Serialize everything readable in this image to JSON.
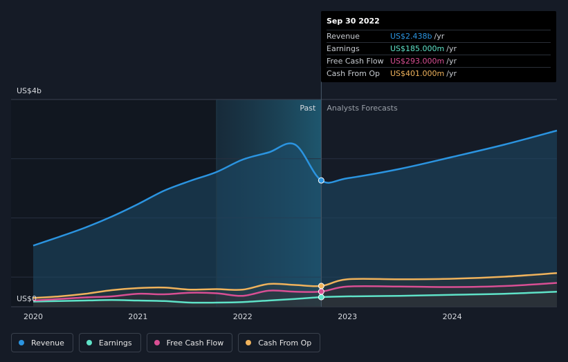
{
  "chart_data": {
    "type": "line",
    "y_axis": {
      "top_label": "US$4b",
      "bottom_label": "US$0",
      "ylim": [
        0,
        4.0
      ]
    },
    "x_axis": {
      "ticks": [
        "2020",
        "2021",
        "2022",
        "2023",
        "2024"
      ],
      "xlim": [
        2020.0,
        2025.0
      ]
    },
    "sections": {
      "past_label": "Past",
      "forecast_label": "Analysts Forecasts",
      "divider_x": 2022.75,
      "shade_start_x": 2021.75
    },
    "series": [
      {
        "name": "Revenue",
        "color": "#2b94e0",
        "x": [
          2020.0,
          2020.25,
          2020.5,
          2020.75,
          2021.0,
          2021.25,
          2021.5,
          2021.75,
          2022.0,
          2022.25,
          2022.5,
          2022.75,
          2023.0,
          2023.5,
          2024.0,
          2024.5,
          2025.0
        ],
        "values": [
          1.18,
          1.35,
          1.53,
          1.74,
          1.98,
          2.24,
          2.43,
          2.6,
          2.84,
          2.98,
          3.13,
          2.438,
          2.48,
          2.66,
          2.89,
          3.13,
          3.4
        ]
      },
      {
        "name": "Earnings",
        "color": "#5fe3c8",
        "x": [
          2020.0,
          2020.25,
          2020.5,
          2020.75,
          2021.0,
          2021.25,
          2021.5,
          2021.75,
          2022.0,
          2022.25,
          2022.5,
          2022.75,
          2023.0,
          2023.5,
          2024.0,
          2024.5,
          2025.0
        ],
        "values": [
          0.1,
          0.11,
          0.12,
          0.13,
          0.12,
          0.11,
          0.08,
          0.08,
          0.09,
          0.12,
          0.15,
          0.185,
          0.2,
          0.21,
          0.23,
          0.25,
          0.29
        ]
      },
      {
        "name": "Free Cash Flow",
        "color": "#d94f94",
        "x": [
          2020.0,
          2020.25,
          2020.5,
          2020.75,
          2021.0,
          2021.25,
          2021.5,
          2021.75,
          2022.0,
          2022.25,
          2022.5,
          2022.75,
          2023.0,
          2023.5,
          2024.0,
          2024.5,
          2025.0
        ],
        "values": [
          0.12,
          0.15,
          0.18,
          0.2,
          0.25,
          0.24,
          0.27,
          0.26,
          0.21,
          0.31,
          0.29,
          0.293,
          0.39,
          0.39,
          0.38,
          0.4,
          0.46
        ]
      },
      {
        "name": "Cash From Op",
        "color": "#f0b35c",
        "x": [
          2020.0,
          2020.25,
          2020.5,
          2020.75,
          2021.0,
          2021.25,
          2021.5,
          2021.75,
          2022.0,
          2022.25,
          2022.5,
          2022.75,
          2023.0,
          2023.5,
          2024.0,
          2024.5,
          2025.0
        ],
        "values": [
          0.17,
          0.2,
          0.25,
          0.32,
          0.36,
          0.37,
          0.33,
          0.34,
          0.33,
          0.44,
          0.42,
          0.401,
          0.53,
          0.53,
          0.54,
          0.58,
          0.65
        ]
      }
    ]
  },
  "tooltip": {
    "date": "Sep 30 2022",
    "rows": [
      {
        "label": "Revenue",
        "value": "US$2.438b",
        "unit": "/yr",
        "color": "#2b94e0"
      },
      {
        "label": "Earnings",
        "value": "US$185.000m",
        "unit": "/yr",
        "color": "#5fe3c8"
      },
      {
        "label": "Free Cash Flow",
        "value": "US$293.000m",
        "unit": "/yr",
        "color": "#d94f94"
      },
      {
        "label": "Cash From Op",
        "value": "US$401.000m",
        "unit": "/yr",
        "color": "#f0b35c"
      }
    ]
  },
  "legend": [
    {
      "label": "Revenue",
      "color": "#2b94e0"
    },
    {
      "label": "Earnings",
      "color": "#5fe3c8"
    },
    {
      "label": "Free Cash Flow",
      "color": "#d94f94"
    },
    {
      "label": "Cash From Op",
      "color": "#f0b35c"
    }
  ]
}
